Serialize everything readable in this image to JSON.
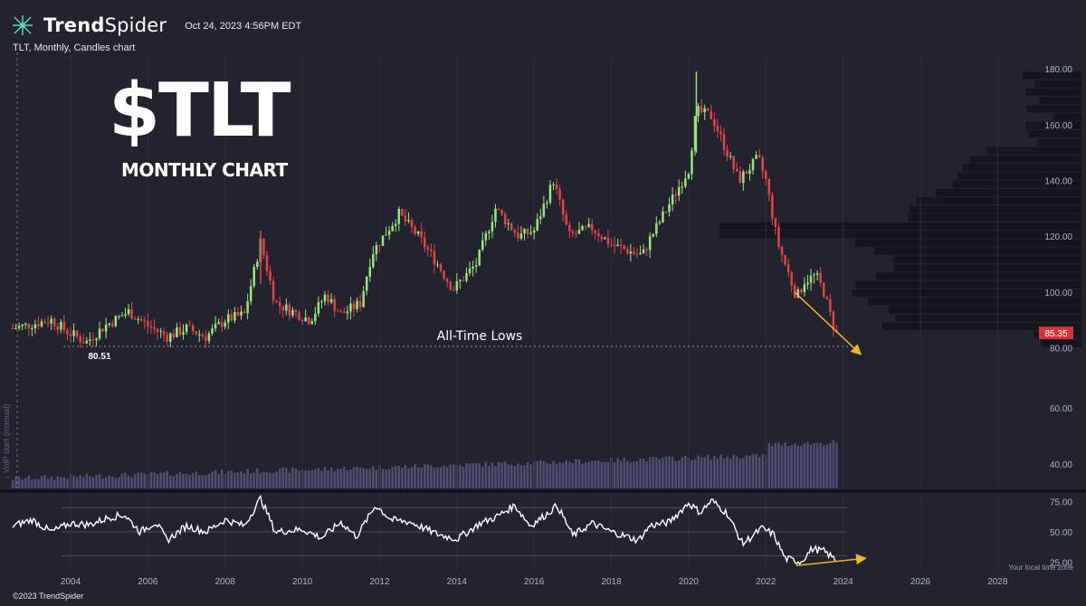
{
  "header": {
    "logo_text_bold": "Trend",
    "logo_text_light": "Spider",
    "timestamp": "Oct 24, 2023 4:56PM EDT",
    "chart_subtitle": "TLT, Monthly, Candles chart"
  },
  "overlay": {
    "title": "$TLT",
    "subtitle": "MONTHLY CHART",
    "annotation": "All-Time Lows",
    "low_label": "80.51"
  },
  "footer": {
    "copyright": "©2023 TrendSpider",
    "timezone_note": "Your local time zone"
  },
  "volume_axis_label": "↓ VolP start (manual)",
  "colors": {
    "background": "#22232f",
    "up": "#9be57e",
    "down": "#e2454a",
    "arrow": "#f0b429",
    "price_tag": "#d8333b",
    "volume": "#575b85",
    "vp": "#14151c"
  },
  "chart_data": [
    {
      "type": "candlestick",
      "interval": "monthly",
      "symbol": "TLT",
      "price_axis": {
        "ticks": [
          80,
          100,
          120,
          140,
          160,
          180
        ],
        "range": [
          75,
          182
        ]
      },
      "x_axis": {
        "ticks": [
          "2004",
          "2006",
          "2008",
          "2010",
          "2012",
          "2014",
          "2016",
          "2018",
          "2020",
          "2022",
          "2024",
          "2026",
          "2028"
        ],
        "range": [
          2002.5,
          2029.0
        ]
      },
      "last_price": "85.35",
      "price_anchor_points": [
        [
          2002.5,
          87
        ],
        [
          2003.5,
          90
        ],
        [
          2003.9,
          86
        ],
        [
          2004.4,
          82
        ],
        [
          2004.9,
          88
        ],
        [
          2005.5,
          93
        ],
        [
          2006.0,
          88
        ],
        [
          2006.5,
          84
        ],
        [
          2007.0,
          87
        ],
        [
          2007.5,
          84
        ],
        [
          2008.0,
          90
        ],
        [
          2008.5,
          92
        ],
        [
          2008.92,
          118
        ],
        [
          2009.3,
          96
        ],
        [
          2010.2,
          90
        ],
        [
          2010.6,
          99
        ],
        [
          2011.0,
          92
        ],
        [
          2011.5,
          96
        ],
        [
          2011.8,
          114
        ],
        [
          2012.5,
          128
        ],
        [
          2013.0,
          120
        ],
        [
          2013.5,
          110
        ],
        [
          2013.9,
          101
        ],
        [
          2014.5,
          110
        ],
        [
          2015.0,
          130
        ],
        [
          2015.6,
          120
        ],
        [
          2016.0,
          122
        ],
        [
          2016.5,
          140
        ],
        [
          2016.9,
          120
        ],
        [
          2017.5,
          123
        ],
        [
          2018.0,
          117
        ],
        [
          2018.8,
          113
        ],
        [
          2019.0,
          119
        ],
        [
          2019.6,
          134
        ],
        [
          2020.0,
          144
        ],
        [
          2020.2,
          165
        ],
        [
          2020.6,
          163
        ],
        [
          2021.0,
          150
        ],
        [
          2021.3,
          140
        ],
        [
          2021.8,
          148
        ],
        [
          2022.0,
          140
        ],
        [
          2022.3,
          118
        ],
        [
          2022.8,
          98
        ],
        [
          2023.0,
          104
        ],
        [
          2023.3,
          106
        ],
        [
          2023.5,
          100
        ],
        [
          2023.8,
          85.35
        ]
      ],
      "volume_axis": {
        "ticks": [
          40.0,
          60.0
        ]
      },
      "volume_profile": "horizontal volume-by-price bars on right side"
    },
    {
      "type": "line",
      "name": "oscillator",
      "y_axis": {
        "ticks": [
          25.0,
          50.0,
          75.0
        ],
        "range": [
          20,
          80
        ]
      },
      "bands": [
        30,
        50,
        70
      ],
      "anchor_points": [
        [
          2002.5,
          55
        ],
        [
          2003.0,
          60
        ],
        [
          2003.5,
          50
        ],
        [
          2004.0,
          57
        ],
        [
          2004.5,
          56
        ],
        [
          2005.0,
          62
        ],
        [
          2005.4,
          64
        ],
        [
          2005.8,
          50
        ],
        [
          2006.2,
          58
        ],
        [
          2006.5,
          43
        ],
        [
          2007.0,
          55
        ],
        [
          2007.5,
          50
        ],
        [
          2008.0,
          60
        ],
        [
          2008.5,
          55
        ],
        [
          2008.92,
          78
        ],
        [
          2009.3,
          50
        ],
        [
          2010.0,
          52
        ],
        [
          2010.5,
          45
        ],
        [
          2011.0,
          58
        ],
        [
          2011.4,
          46
        ],
        [
          2011.9,
          72
        ],
        [
          2012.3,
          60
        ],
        [
          2012.8,
          58
        ],
        [
          2013.5,
          48
        ],
        [
          2014.0,
          44
        ],
        [
          2014.6,
          57
        ],
        [
          2015.0,
          62
        ],
        [
          2015.5,
          72
        ],
        [
          2015.9,
          55
        ],
        [
          2016.3,
          64
        ],
        [
          2016.6,
          72
        ],
        [
          2017.0,
          47
        ],
        [
          2017.5,
          57
        ],
        [
          2018.0,
          50
        ],
        [
          2018.7,
          43
        ],
        [
          2019.0,
          55
        ],
        [
          2019.5,
          58
        ],
        [
          2020.0,
          74
        ],
        [
          2020.3,
          66
        ],
        [
          2020.6,
          76
        ],
        [
          2021.0,
          65
        ],
        [
          2021.4,
          40
        ],
        [
          2021.9,
          53
        ],
        [
          2022.2,
          48
        ],
        [
          2022.5,
          28
        ],
        [
          2022.9,
          25
        ],
        [
          2023.2,
          36
        ],
        [
          2023.5,
          34
        ],
        [
          2023.8,
          27
        ]
      ]
    }
  ]
}
